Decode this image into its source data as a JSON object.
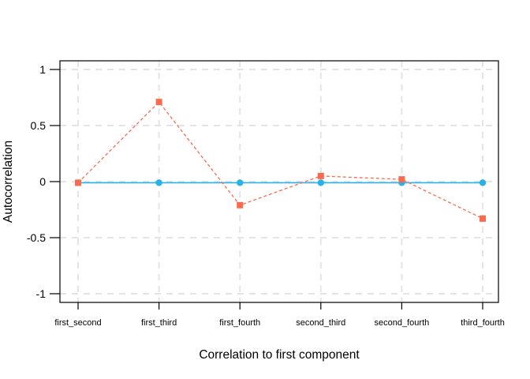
{
  "chart_data": {
    "type": "line",
    "title": "",
    "xlabel": "Correlation to first component",
    "ylabel": "Autocorrelation",
    "categories": [
      "first_second",
      "first_third",
      "first_fourth",
      "second_third",
      "second_fourth",
      "third_fourth"
    ],
    "yticks": {
      "values": [
        1,
        0.5,
        0,
        -0.5,
        -1
      ],
      "labels": [
        "1",
        "0.5",
        "0",
        "-0.5",
        "-1"
      ]
    },
    "ylim": [
      -1.08,
      1.08
    ],
    "grid": {
      "style": "dashed",
      "color": "#e4e4e4"
    },
    "legend_position": "none",
    "axis_color": "#000000",
    "background_color": "#ffffff",
    "series": [
      {
        "name": "cyan-solid-series",
        "color": "#29b2e5",
        "line_style": "solid",
        "marker": "circle",
        "values": [
          -0.01,
          -0.01,
          -0.01,
          -0.01,
          -0.01,
          -0.01
        ]
      },
      {
        "name": "red-dashed-series",
        "color": "#fb6a4e",
        "line_style": "dashed",
        "marker": "square",
        "values": [
          -0.01,
          0.71,
          -0.21,
          0.05,
          0.02,
          -0.33
        ]
      }
    ]
  }
}
